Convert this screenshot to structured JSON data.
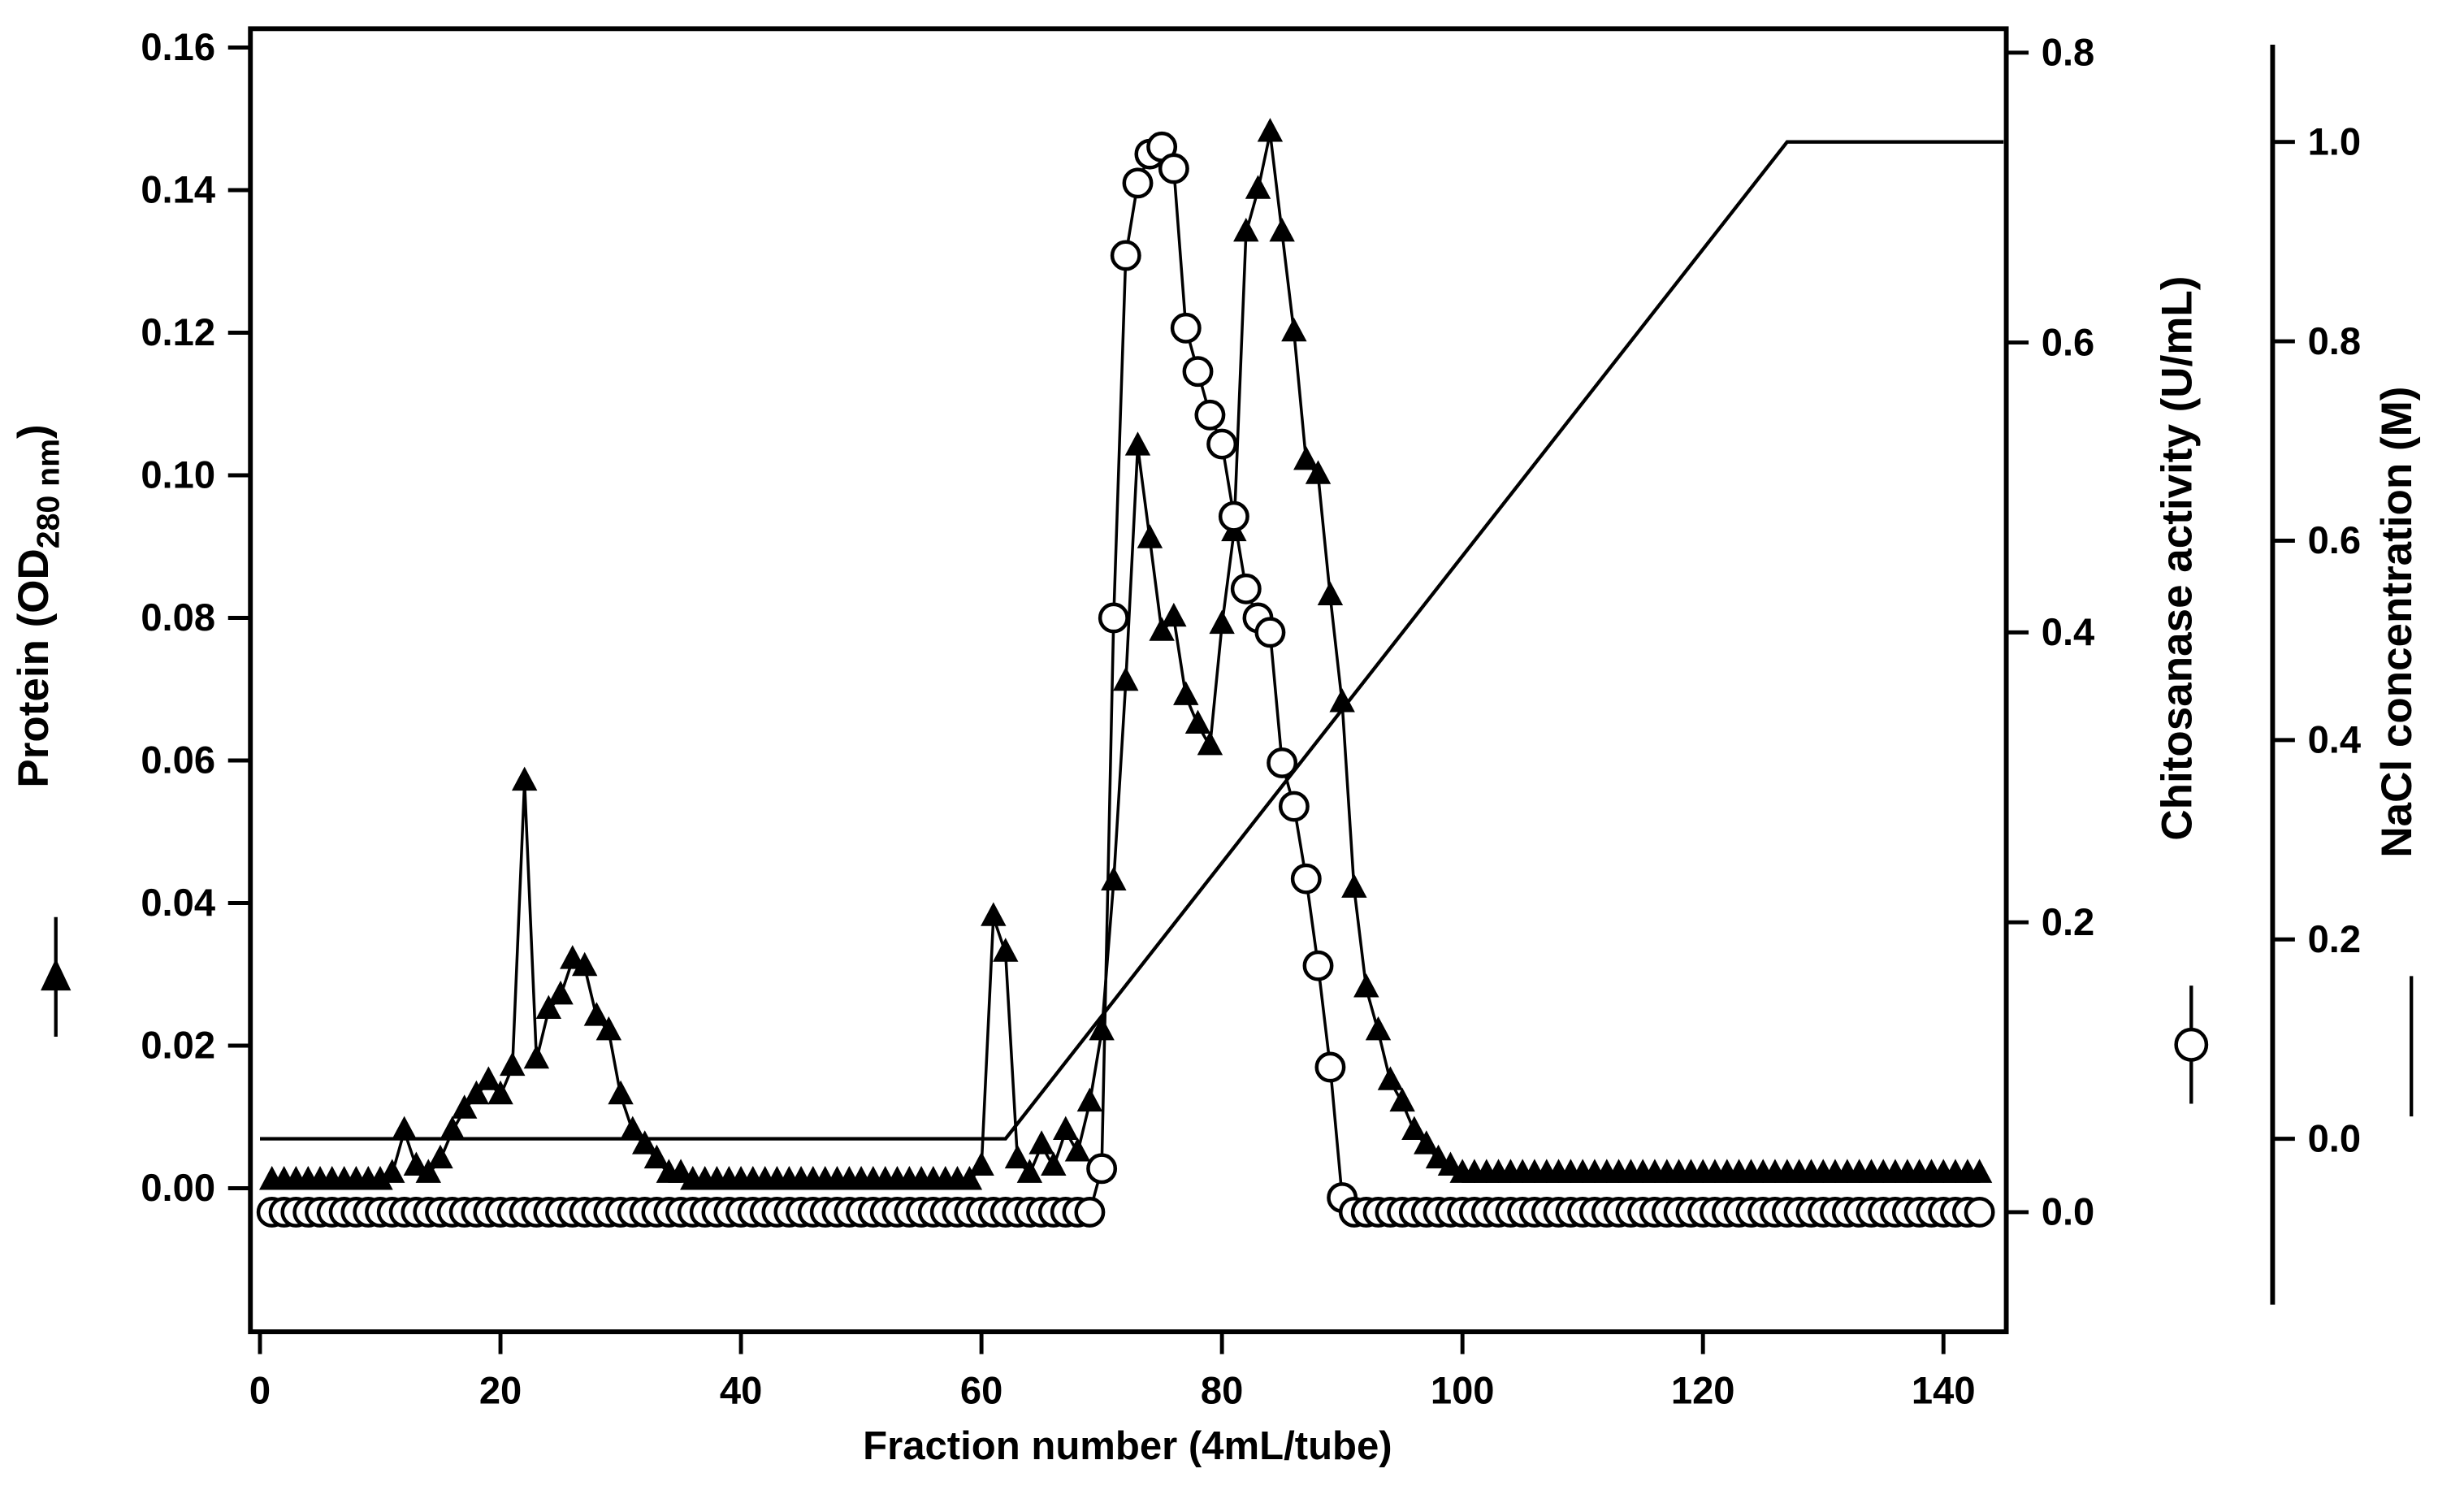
{
  "chart_data": {
    "type": "line",
    "title": "",
    "xlabel": "Fraction number (4mL/tube)",
    "xlim": [
      -0.796,
      145.225
    ],
    "grid": false,
    "x_ticks": {
      "values": [
        0,
        20,
        40,
        60,
        80,
        100,
        120,
        140
      ],
      "labels": [
        "0",
        "20",
        "40",
        "60",
        "80",
        "100",
        "120",
        "140"
      ]
    },
    "axes": {
      "protein": {
        "label_full": "Protein (OD280 nm)",
        "label_pre": "Protein (OD",
        "label_sub": "280 nm",
        "label_post": ")",
        "side": "left",
        "lim": [
          -0.020134,
          0.16264
        ],
        "ticks": {
          "values": [
            0.0,
            0.02,
            0.04,
            0.06,
            0.08,
            0.1,
            0.12,
            0.14,
            0.16
          ],
          "labels": [
            "0.00",
            "0.02",
            "0.04",
            "0.06",
            "0.08",
            "0.10",
            "0.12",
            "0.14",
            "0.16"
          ]
        }
      },
      "chitosanase": {
        "label": "Chitosanase activity (U/mL)",
        "side": "right",
        "lim": [
          -0.08253,
          0.816506
        ],
        "ticks": {
          "values": [
            0.0,
            0.2,
            0.4,
            0.6,
            0.8
          ],
          "labels": [
            "0.0",
            "0.2",
            "0.4",
            "0.6",
            "0.8"
          ]
        }
      },
      "nacl": {
        "label": "NaCl concentration (M)",
        "side": "far-right",
        "lim": [
          -0.1936,
          1.1136
        ],
        "ticks": {
          "values": [
            0.0,
            0.2,
            0.4,
            0.6,
            0.8,
            1.0
          ],
          "labels": [
            "0.0",
            "0.2",
            "0.4",
            "0.6",
            "0.8",
            "1.0"
          ]
        }
      }
    },
    "colors": {
      "line": "#000000",
      "marker_fill": "#000000",
      "marker_open_fill": "#ffffff",
      "background": "#ffffff"
    },
    "series": [
      {
        "name": "NaCl concentration (M)",
        "axis": "nacl",
        "marker": "none",
        "x": [
          0,
          62,
          127,
          145
        ],
        "y": [
          0.0,
          0.0,
          1.0,
          1.0
        ]
      },
      {
        "name": "Protein (OD280 nm)",
        "axis": "protein",
        "marker": "filled-triangle",
        "x": [
          1,
          2,
          3,
          4,
          5,
          6,
          7,
          8,
          9,
          10,
          11,
          12,
          13,
          14,
          15,
          16,
          17,
          18,
          19,
          20,
          21,
          22,
          23,
          24,
          25,
          26,
          27,
          28,
          29,
          30,
          31,
          32,
          33,
          34,
          35,
          36,
          37,
          38,
          39,
          40,
          41,
          42,
          43,
          44,
          45,
          46,
          47,
          48,
          49,
          50,
          51,
          52,
          53,
          54,
          55,
          56,
          57,
          58,
          59,
          60,
          61,
          62,
          63,
          64,
          65,
          66,
          67,
          68,
          69,
          70,
          71,
          72,
          73,
          74,
          75,
          76,
          77,
          78,
          79,
          80,
          81,
          82,
          83,
          84,
          85,
          86,
          87,
          88,
          89,
          90,
          91,
          92,
          93,
          94,
          95,
          96,
          97,
          98,
          99,
          100,
          101,
          102,
          103,
          104,
          105,
          106,
          107,
          108,
          109,
          110,
          111,
          112,
          113,
          114,
          115,
          116,
          117,
          118,
          119,
          120,
          121,
          122,
          123,
          124,
          125,
          126,
          127,
          128,
          129,
          130,
          131,
          132,
          133,
          134,
          135,
          136,
          137,
          138,
          139,
          140,
          141,
          142,
          143
        ],
        "y": [
          0.001,
          0.001,
          0.001,
          0.001,
          0.001,
          0.001,
          0.001,
          0.001,
          0.001,
          0.001,
          0.002,
          0.008,
          0.003,
          0.002,
          0.004,
          0.008,
          0.011,
          0.013,
          0.015,
          0.013,
          0.017,
          0.057,
          0.018,
          0.025,
          0.027,
          0.032,
          0.031,
          0.024,
          0.022,
          0.013,
          0.008,
          0.006,
          0.004,
          0.002,
          0.002,
          0.001,
          0.001,
          0.001,
          0.001,
          0.001,
          0.001,
          0.001,
          0.001,
          0.001,
          0.001,
          0.001,
          0.001,
          0.001,
          0.001,
          0.001,
          0.001,
          0.001,
          0.001,
          0.001,
          0.001,
          0.001,
          0.001,
          0.001,
          0.001,
          0.003,
          0.038,
          0.033,
          0.004,
          0.002,
          0.006,
          0.003,
          0.008,
          0.005,
          0.012,
          0.022,
          0.043,
          0.071,
          0.104,
          0.091,
          0.078,
          0.08,
          0.069,
          0.065,
          0.062,
          0.079,
          0.092,
          0.134,
          0.14,
          0.148,
          0.134,
          0.12,
          0.102,
          0.1,
          0.083,
          0.068,
          0.042,
          0.028,
          0.022,
          0.015,
          0.012,
          0.008,
          0.006,
          0.004,
          0.003,
          0.002,
          0.002,
          0.002,
          0.002,
          0.002,
          0.002,
          0.002,
          0.002,
          0.002,
          0.002,
          0.002,
          0.002,
          0.002,
          0.002,
          0.002,
          0.002,
          0.002,
          0.002,
          0.002,
          0.002,
          0.002,
          0.002,
          0.002,
          0.002,
          0.002,
          0.002,
          0.002,
          0.002,
          0.002,
          0.002,
          0.002,
          0.002,
          0.002,
          0.002,
          0.002,
          0.002,
          0.002,
          0.002,
          0.002,
          0.002,
          0.002,
          0.002,
          0.002,
          0.002
        ]
      },
      {
        "name": "Chitosanase activity (U/mL)",
        "axis": "chitosanase",
        "marker": "open-circle",
        "x": [
          1,
          2,
          3,
          4,
          5,
          6,
          7,
          8,
          9,
          10,
          11,
          12,
          13,
          14,
          15,
          16,
          17,
          18,
          19,
          20,
          21,
          22,
          23,
          24,
          25,
          26,
          27,
          28,
          29,
          30,
          31,
          32,
          33,
          34,
          35,
          36,
          37,
          38,
          39,
          40,
          41,
          42,
          43,
          44,
          45,
          46,
          47,
          48,
          49,
          50,
          51,
          52,
          53,
          54,
          55,
          56,
          57,
          58,
          59,
          60,
          61,
          62,
          63,
          64,
          65,
          66,
          67,
          68,
          69,
          70,
          71,
          72,
          73,
          74,
          75,
          76,
          77,
          78,
          79,
          80,
          81,
          82,
          83,
          84,
          85,
          86,
          87,
          88,
          89,
          90,
          91,
          92,
          93,
          94,
          95,
          96,
          97,
          98,
          99,
          100,
          101,
          102,
          103,
          104,
          105,
          106,
          107,
          108,
          109,
          110,
          111,
          112,
          113,
          114,
          115,
          116,
          117,
          118,
          119,
          120,
          121,
          122,
          123,
          124,
          125,
          126,
          127,
          128,
          129,
          130,
          131,
          132,
          133,
          134,
          135,
          136,
          137,
          138,
          139,
          140,
          141,
          142,
          143
        ],
        "y": [
          0,
          0,
          0,
          0,
          0,
          0,
          0,
          0,
          0,
          0,
          0,
          0,
          0,
          0,
          0,
          0,
          0,
          0,
          0,
          0,
          0,
          0,
          0,
          0,
          0,
          0,
          0,
          0,
          0,
          0,
          0,
          0,
          0,
          0,
          0,
          0,
          0,
          0,
          0,
          0,
          0,
          0,
          0,
          0,
          0,
          0,
          0,
          0,
          0,
          0,
          0,
          0,
          0,
          0,
          0,
          0,
          0,
          0,
          0,
          0,
          0,
          0,
          0,
          0,
          0,
          0,
          0,
          0,
          0,
          0.03,
          0.41,
          0.66,
          0.71,
          0.73,
          0.735,
          0.72,
          0.61,
          0.58,
          0.55,
          0.53,
          0.48,
          0.43,
          0.41,
          0.4,
          0.31,
          0.28,
          0.23,
          0.17,
          0.1,
          0.01,
          0,
          0,
          0,
          0,
          0,
          0,
          0,
          0,
          0,
          0,
          0,
          0,
          0,
          0,
          0,
          0,
          0,
          0,
          0,
          0,
          0,
          0,
          0,
          0,
          0,
          0,
          0,
          0,
          0,
          0,
          0,
          0,
          0,
          0,
          0,
          0,
          0,
          0,
          0,
          0,
          0,
          0,
          0,
          0,
          0,
          0,
          0,
          0,
          0,
          0,
          0,
          0,
          0
        ]
      }
    ]
  }
}
